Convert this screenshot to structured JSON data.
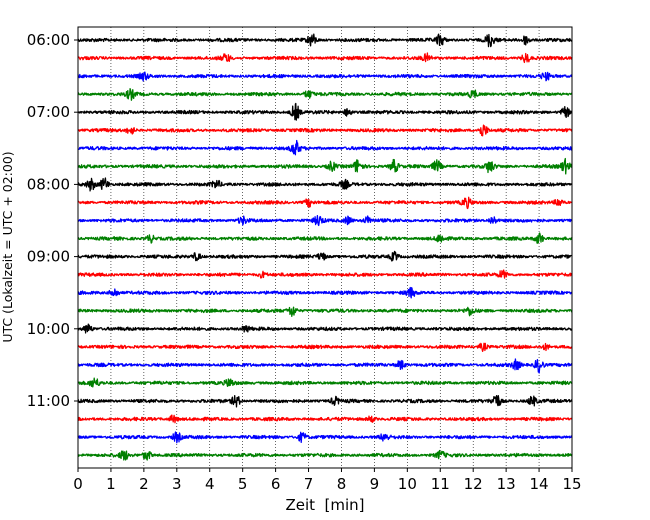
{
  "chart_data": {
    "type": "line",
    "subtype": "helicorder-seismogram",
    "xlabel": "Zeit  [min]",
    "ylabel": "UTC (Lokalzeit = UTC + 02:00)",
    "xlim": [
      0,
      15
    ],
    "x_ticks": [
      "0",
      "1",
      "2",
      "3",
      "4",
      "5",
      "6",
      "7",
      "8",
      "9",
      "10",
      "11",
      "12",
      "13",
      "14",
      "15"
    ],
    "y_ticks": [
      "06:00",
      "07:00",
      "08:00",
      "09:00",
      "10:00",
      "11:00"
    ],
    "grid": "vertical dotted at each minute",
    "trace_colors": [
      "#000000",
      "#ff0000",
      "#0000ff",
      "#008000"
    ],
    "trace_count": 24,
    "trace_start_times": [
      "06:00",
      "06:15",
      "06:30",
      "06:45",
      "07:00",
      "07:15",
      "07:30",
      "07:45",
      "08:00",
      "08:15",
      "08:30",
      "08:45",
      "09:00",
      "09:15",
      "09:30",
      "09:45",
      "10:00",
      "10:15",
      "10:30",
      "10:45",
      "11:00",
      "11:15",
      "11:30",
      "11:45"
    ],
    "events": [
      [
        [
          7.1,
          0.7
        ],
        [
          11.0,
          0.6
        ],
        [
          12.5,
          0.7
        ],
        [
          13.6,
          0.5
        ]
      ],
      [
        [
          4.5,
          0.4
        ],
        [
          10.6,
          0.4
        ],
        [
          13.6,
          0.5
        ]
      ],
      [
        [
          2.0,
          0.4
        ],
        [
          14.2,
          0.4
        ]
      ],
      [
        [
          1.6,
          0.5
        ],
        [
          7.0,
          0.4
        ],
        [
          12.0,
          0.4
        ]
      ],
      [
        [
          6.6,
          0.9
        ],
        [
          8.2,
          0.4
        ],
        [
          14.8,
          0.5
        ]
      ],
      [
        [
          1.6,
          0.4
        ],
        [
          12.3,
          0.7
        ]
      ],
      [
        [
          6.6,
          0.8
        ]
      ],
      [
        [
          7.7,
          0.5
        ],
        [
          8.5,
          0.7
        ],
        [
          9.6,
          0.7
        ],
        [
          10.9,
          0.6
        ],
        [
          12.5,
          0.6
        ],
        [
          14.8,
          0.7
        ]
      ],
      [
        [
          0.4,
          0.6
        ],
        [
          0.8,
          0.7
        ],
        [
          4.2,
          0.4
        ],
        [
          8.1,
          0.4
        ]
      ],
      [
        [
          7.0,
          0.4
        ],
        [
          11.8,
          0.5
        ],
        [
          14.6,
          0.4
        ]
      ],
      [
        [
          5.0,
          0.4
        ],
        [
          7.3,
          0.5
        ],
        [
          8.2,
          0.4
        ],
        [
          8.8,
          0.4
        ],
        [
          12.6,
          0.4
        ]
      ],
      [
        [
          2.2,
          0.4
        ],
        [
          14.0,
          0.6
        ],
        [
          11.0,
          0.4
        ]
      ],
      [
        [
          3.6,
          0.4
        ],
        [
          7.4,
          0.4
        ],
        [
          9.6,
          0.5
        ]
      ],
      [
        [
          12.9,
          0.4
        ],
        [
          5.6,
          0.3
        ]
      ],
      [
        [
          1.1,
          0.5
        ],
        [
          10.1,
          0.5
        ]
      ],
      [
        [
          6.5,
          0.6
        ],
        [
          11.9,
          0.4
        ]
      ],
      [
        [
          0.3,
          0.5
        ],
        [
          5.1,
          0.3
        ]
      ],
      [
        [
          12.3,
          0.4
        ],
        [
          14.2,
          0.3
        ]
      ],
      [
        [
          9.8,
          0.5
        ],
        [
          13.3,
          0.5
        ],
        [
          14.0,
          0.8
        ]
      ],
      [
        [
          0.5,
          0.5
        ],
        [
          4.6,
          0.4
        ]
      ],
      [
        [
          4.8,
          0.6
        ],
        [
          7.8,
          0.4
        ],
        [
          12.7,
          0.8
        ],
        [
          13.8,
          0.5
        ]
      ],
      [
        [
          2.9,
          0.4
        ],
        [
          8.9,
          0.3
        ]
      ],
      [
        [
          3.0,
          0.5
        ],
        [
          6.8,
          0.5
        ],
        [
          9.3,
          0.4
        ]
      ],
      [
        [
          1.4,
          0.5
        ],
        [
          2.1,
          0.5
        ],
        [
          11.0,
          0.4
        ]
      ]
    ]
  }
}
